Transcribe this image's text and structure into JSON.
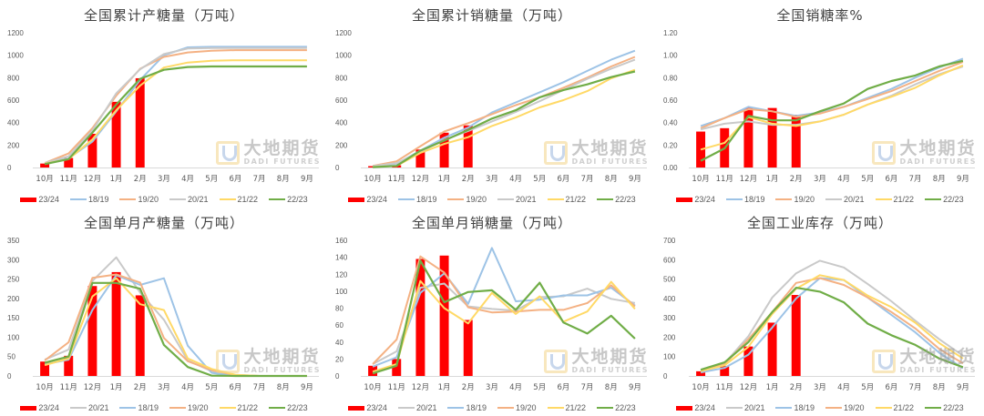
{
  "watermark": {
    "cn": "大地期货",
    "en": "DADI FUTURES"
  },
  "colors": {
    "23/24": "#ff0000",
    "18/19": "#9dc3e6",
    "19/20": "#f4b183",
    "20/21": "#c9c9c9",
    "21/22": "#ffd966",
    "22/23": "#70ad47"
  },
  "chart_data": [
    {
      "id": "cum_production",
      "type": "bar+line",
      "title": "全国累计产糖量（万吨）",
      "categories": [
        "10月",
        "11月",
        "12月",
        "1月",
        "2月",
        "3月",
        "4月",
        "5月",
        "6月",
        "7月",
        "8月",
        "9月"
      ],
      "ylim": [
        0,
        1200
      ],
      "yticks": [
        0,
        200,
        400,
        600,
        800,
        1000,
        1200
      ],
      "ytick_format": "int",
      "legend_order": [
        "23/24",
        "18/19",
        "19/20",
        "20/21",
        "21/22",
        "22/23"
      ],
      "bar_series": {
        "name": "23/24",
        "values": [
          35,
          85,
          300,
          585,
          795,
          null,
          null,
          null,
          null,
          null,
          null,
          null
        ]
      },
      "series": [
        {
          "name": "18/19",
          "values": [
            35,
            80,
            230,
            500,
            780,
            1000,
            1070,
            1075,
            1075,
            1075,
            1075,
            1075
          ]
        },
        {
          "name": "19/20",
          "values": [
            40,
            125,
            350,
            640,
            880,
            985,
            1025,
            1040,
            1045,
            1045,
            1045,
            1045
          ]
        },
        {
          "name": "20/21",
          "values": [
            40,
            100,
            330,
            660,
            875,
            1010,
            1060,
            1065,
            1065,
            1065,
            1065,
            1065
          ]
        },
        {
          "name": "21/22",
          "values": [
            35,
            75,
            250,
            510,
            730,
            890,
            935,
            950,
            955,
            955,
            955,
            955
          ]
        },
        {
          "name": "22/23",
          "values": [
            30,
            75,
            310,
            560,
            790,
            870,
            895,
            900,
            900,
            900,
            900,
            900
          ]
        }
      ]
    },
    {
      "id": "cum_sales",
      "type": "bar+line",
      "title": "全国累计销糖量（万吨）",
      "categories": [
        "10月",
        "11月",
        "12月",
        "1月",
        "2月",
        "3月",
        "4月",
        "5月",
        "6月",
        "7月",
        "8月",
        "9月"
      ],
      "ylim": [
        0,
        1200
      ],
      "yticks": [
        0,
        200,
        400,
        600,
        800,
        1000,
        1200
      ],
      "ytick_format": "int",
      "legend_order": [
        "23/24",
        "18/19",
        "19/20",
        "20/21",
        "21/22",
        "22/23"
      ],
      "bar_series": {
        "name": "23/24",
        "values": [
          12,
          20,
          160,
          310,
          375,
          null,
          null,
          null,
          null,
          null,
          null,
          null
        ]
      },
      "series": [
        {
          "name": "18/19",
          "values": [
            12,
            35,
            150,
            265,
            355,
            490,
            580,
            670,
            760,
            860,
            960,
            1040
          ]
        },
        {
          "name": "19/20",
          "values": [
            15,
            55,
            190,
            320,
            395,
            475,
            555,
            625,
            710,
            800,
            900,
            985
          ]
        },
        {
          "name": "20/21",
          "values": [
            12,
            40,
            140,
            245,
            325,
            410,
            495,
            590,
            690,
            790,
            880,
            960
          ]
        },
        {
          "name": "21/22",
          "values": [
            5,
            15,
            130,
            210,
            270,
            370,
            445,
            535,
            600,
            680,
            795,
            870
          ]
        },
        {
          "name": "22/23",
          "values": [
            3,
            15,
            150,
            240,
            335,
            435,
            510,
            625,
            690,
            740,
            805,
            855
          ]
        }
      ]
    },
    {
      "id": "sales_rate",
      "type": "bar+line",
      "title": "全国销糖率%",
      "categories": [
        "10月",
        "11月",
        "12月",
        "1月",
        "2月",
        "3月",
        "4月",
        "5月",
        "6月",
        "7月",
        "8月",
        "9月"
      ],
      "ylim": [
        0,
        1.2
      ],
      "yticks": [
        0,
        0.2,
        0.4,
        0.6,
        0.8,
        1.0,
        1.2
      ],
      "ytick_format": "fixed2",
      "legend_order": [
        "23/24",
        "18/19",
        "19/20",
        "20/21",
        "21/22",
        "22/23"
      ],
      "bar_series": {
        "name": "23/24",
        "values": [
          0.32,
          0.35,
          0.53,
          0.53,
          0.47,
          null,
          null,
          null,
          null,
          null,
          null,
          null
        ]
      },
      "series": [
        {
          "name": "18/19",
          "values": [
            0.37,
            0.44,
            0.54,
            0.5,
            0.46,
            0.49,
            0.54,
            0.62,
            0.7,
            0.8,
            0.89,
            0.97
          ]
        },
        {
          "name": "19/20",
          "values": [
            0.35,
            0.44,
            0.52,
            0.5,
            0.45,
            0.48,
            0.54,
            0.61,
            0.68,
            0.77,
            0.86,
            0.94
          ]
        },
        {
          "name": "20/21",
          "values": [
            0.34,
            0.39,
            0.41,
            0.38,
            0.38,
            0.41,
            0.47,
            0.56,
            0.64,
            0.74,
            0.83,
            0.9
          ]
        },
        {
          "name": "21/22",
          "values": [
            0.16,
            0.22,
            0.45,
            0.39,
            0.37,
            0.41,
            0.47,
            0.56,
            0.63,
            0.71,
            0.82,
            0.91
          ]
        },
        {
          "name": "22/23",
          "values": [
            0.06,
            0.17,
            0.46,
            0.42,
            0.42,
            0.5,
            0.57,
            0.7,
            0.77,
            0.82,
            0.9,
            0.95
          ]
        }
      ]
    },
    {
      "id": "monthly_production",
      "type": "bar+line",
      "title": "全国单月产糖量（万吨）",
      "categories": [
        "10月",
        "11月",
        "12月",
        "1月",
        "2月",
        "3月",
        "4月",
        "5月",
        "6月",
        "7月",
        "8月",
        "9月"
      ],
      "ylim": [
        0,
        350
      ],
      "yticks": [
        0,
        50,
        100,
        150,
        200,
        250,
        300,
        350
      ],
      "ytick_format": "int",
      "legend_order": [
        "23/24",
        "20/21",
        "18/19",
        "19/20",
        "21/22",
        "22/23"
      ],
      "bar_series": {
        "name": "23/24",
        "values": [
          37,
          52,
          232,
          268,
          208,
          null,
          null,
          null,
          null,
          null,
          null,
          null
        ]
      },
      "series": [
        {
          "name": "20/21",
          "values": [
            42,
            68,
            245,
            306,
            215,
            145,
            40,
            12,
            3,
            0,
            0,
            0
          ]
        },
        {
          "name": "18/19",
          "values": [
            30,
            42,
            170,
            260,
            235,
            252,
            78,
            8,
            0,
            0,
            0,
            0
          ]
        },
        {
          "name": "19/20",
          "values": [
            40,
            87,
            253,
            262,
            241,
            98,
            38,
            15,
            2,
            0,
            0,
            0
          ]
        },
        {
          "name": "21/22",
          "values": [
            28,
            45,
            205,
            252,
            185,
            170,
            45,
            18,
            3,
            0,
            0,
            0
          ]
        },
        {
          "name": "22/23",
          "values": [
            34,
            50,
            240,
            240,
            225,
            80,
            23,
            1,
            0,
            0,
            0,
            0
          ]
        }
      ]
    },
    {
      "id": "monthly_sales",
      "type": "bar+line",
      "title": "全国单月销糖量（万吨）",
      "categories": [
        "10月",
        "11月",
        "12月",
        "1月",
        "2月",
        "3月",
        "4月",
        "5月",
        "6月",
        "7月",
        "8月",
        "9月"
      ],
      "ylim": [
        0,
        160
      ],
      "yticks": [
        0,
        20,
        40,
        60,
        80,
        100,
        120,
        140,
        160
      ],
      "ytick_format": "int",
      "legend_order": [
        "23/24",
        "20/21",
        "18/19",
        "19/20",
        "21/22",
        "22/23"
      ],
      "bar_series": {
        "name": "23/24",
        "values": [
          12,
          20,
          138,
          142,
          66,
          null,
          null,
          null,
          null,
          null,
          null,
          null
        ]
      },
      "series": [
        {
          "name": "20/21",
          "values": [
            14,
            29,
            104,
            109,
            82,
            79,
            77,
            93,
            94,
            103,
            91,
            86
          ]
        },
        {
          "name": "18/19",
          "values": [
            11,
            22,
            98,
            121,
            85,
            151,
            88,
            90,
            95,
            95,
            104,
            83
          ]
        },
        {
          "name": "19/20",
          "values": [
            14,
            43,
            141,
            122,
            81,
            75,
            76,
            78,
            78,
            86,
            107,
            82
          ]
        },
        {
          "name": "21/22",
          "values": [
            5,
            14,
            112,
            80,
            62,
            98,
            73,
            94,
            64,
            76,
            111,
            79
          ]
        },
        {
          "name": "22/23",
          "values": [
            3,
            12,
            136,
            87,
            99,
            101,
            78,
            110,
            63,
            50,
            71,
            44
          ]
        }
      ]
    },
    {
      "id": "industrial_inventory",
      "type": "bar+line",
      "title": "全国工业库存（万吨）",
      "categories": [
        "10月",
        "11月",
        "12月",
        "1月",
        "2月",
        "3月",
        "4月",
        "5月",
        "6月",
        "7月",
        "8月",
        "9月"
      ],
      "ylim": [
        0,
        700
      ],
      "yticks": [
        0,
        100,
        200,
        300,
        400,
        500,
        600,
        700
      ],
      "ytick_format": "int",
      "legend_order": [
        "23/24",
        "20/21",
        "18/19",
        "19/20",
        "21/22",
        "22/23"
      ],
      "bar_series": {
        "name": "23/24",
        "values": [
          24,
          52,
          152,
          275,
          418,
          null,
          null,
          null,
          null,
          null,
          null,
          null
        ]
      },
      "series": [
        {
          "name": "20/21",
          "values": [
            28,
            65,
            205,
            405,
            530,
            595,
            560,
            475,
            385,
            285,
            190,
            105
          ]
        },
        {
          "name": "18/19",
          "values": [
            18,
            42,
            110,
            250,
            400,
            505,
            495,
            405,
            315,
            225,
            120,
            40
          ]
        },
        {
          "name": "19/20",
          "values": [
            25,
            60,
            190,
            330,
            480,
            505,
            470,
            405,
            330,
            245,
            140,
            65
          ]
        },
        {
          "name": "21/22",
          "values": [
            25,
            55,
            150,
            320,
            450,
            520,
            495,
            415,
            355,
            275,
            170,
            90
          ]
        },
        {
          "name": "22/23",
          "values": [
            32,
            70,
            175,
            330,
            455,
            435,
            380,
            270,
            210,
            160,
            90,
            45
          ]
        }
      ]
    }
  ]
}
